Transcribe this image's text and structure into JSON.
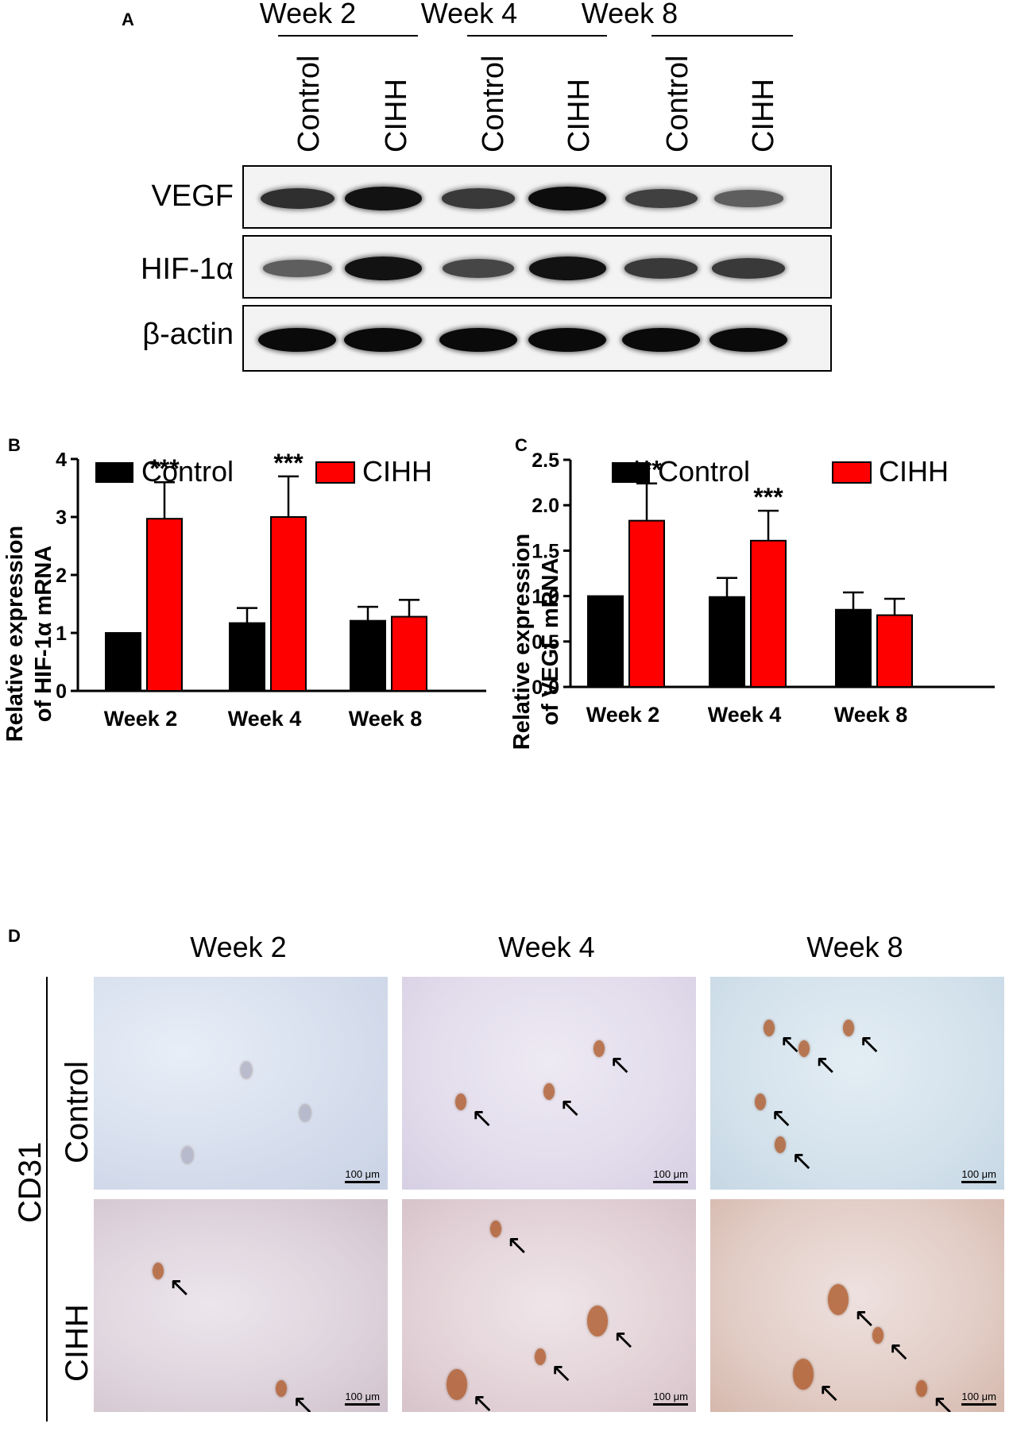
{
  "panel_a": {
    "letter": "A",
    "weeks": [
      "Week 2",
      "Week 4",
      "Week 8"
    ],
    "lanes": [
      "Control",
      "CIHH",
      "Control",
      "CIHH",
      "Control",
      "CIHH"
    ],
    "blots": [
      {
        "label": "VEGF",
        "intensity": [
          0.75,
          0.95,
          0.7,
          0.98,
          0.65,
          0.45
        ]
      },
      {
        "label": "HIF-1α",
        "intensity": [
          0.45,
          0.95,
          0.6,
          0.95,
          0.7,
          0.7
        ]
      },
      {
        "label": "β-actin",
        "intensity": [
          1.0,
          1.0,
          1.0,
          1.0,
          1.0,
          1.0
        ]
      }
    ]
  },
  "panel_b": {
    "letter": "B",
    "legend": [
      "Control",
      "CIHH"
    ],
    "ylabel_line1": "Relative expression",
    "ylabel_line2": "of HIF-1α mRNA",
    "significance": "***"
  },
  "panel_c": {
    "letter": "C",
    "legend": [
      "Control",
      "CIHH"
    ],
    "ylabel_line1": "Relative expression",
    "ylabel_line2": "of VEGF mRNA",
    "significance": "***"
  },
  "chart_data": [
    {
      "type": "bar",
      "categories": [
        "Week 2",
        "Week 4",
        "Week 8"
      ],
      "series": [
        {
          "name": "Control",
          "values": [
            1.0,
            1.17,
            1.21
          ],
          "errors": [
            0,
            0.26,
            0.24
          ],
          "color": "#000000"
        },
        {
          "name": "CIHH",
          "values": [
            2.97,
            3.0,
            1.28
          ],
          "errors": [
            0.63,
            0.7,
            0.29
          ],
          "color": "#ff0000"
        }
      ],
      "ylim": [
        0,
        4
      ],
      "yticks": [
        "0",
        "1",
        "2",
        "3",
        "4"
      ],
      "ylabel": "Relative expression of HIF-1α mRNA",
      "annotations": [
        {
          "category": "Week 2",
          "series": "CIHH",
          "text": "***"
        },
        {
          "category": "Week 4",
          "series": "CIHH",
          "text": "***"
        }
      ]
    },
    {
      "type": "bar",
      "categories": [
        "Week 2",
        "Week 4",
        "Week 8"
      ],
      "series": [
        {
          "name": "Control",
          "values": [
            1.0,
            0.99,
            0.85
          ],
          "errors": [
            0,
            0.21,
            0.19
          ],
          "color": "#000000"
        },
        {
          "name": "CIHH",
          "values": [
            1.83,
            1.61,
            0.79
          ],
          "errors": [
            0.41,
            0.33,
            0.18
          ],
          "color": "#ff0000"
        }
      ],
      "ylim": [
        0,
        2.5
      ],
      "yticks": [
        "0.0",
        "0.5",
        "1.0",
        "1.5",
        "2.0",
        "2.5"
      ],
      "ylabel": "Relative expression of VEGF mRNA",
      "annotations": [
        {
          "category": "Week 2",
          "series": "CIHH",
          "text": "***"
        },
        {
          "category": "Week 4",
          "series": "CIHH",
          "text": "***"
        }
      ]
    }
  ],
  "panel_d": {
    "letter": "D",
    "stain": "CD31",
    "columns": [
      "Week 2",
      "Week 4",
      "Week 8"
    ],
    "rows": [
      "Control",
      "CIHH"
    ],
    "scale_bar": "100 μm"
  }
}
